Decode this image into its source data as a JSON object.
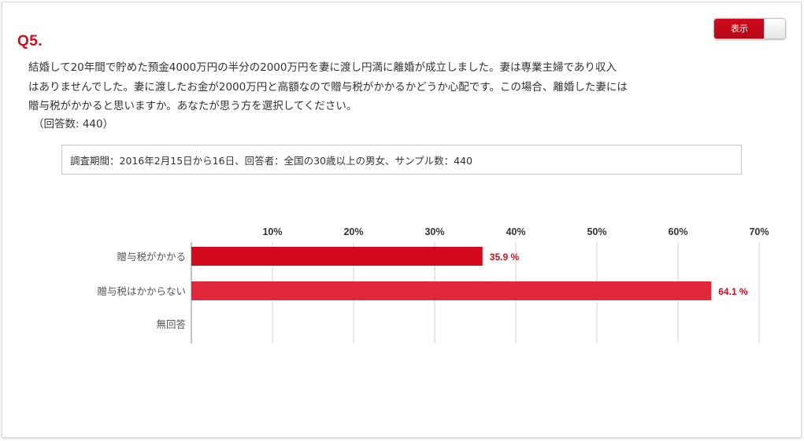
{
  "toggle": {
    "label": "表示"
  },
  "question": {
    "number": "Q5.",
    "text": "結婚して20年間で貯めた預金4000万円の半分の2000万円を妻に渡し円満に離婚が成立しました。妻は専業主婦であり収入\nはありませんでした。妻に渡したお金が2000万円と高額なので贈与税がかかるかどうか心配です。この場合、離婚した妻には\n贈与税がかかると思いますか。あなたが思う方を選択してください。",
    "answers": "（回答数: 440）"
  },
  "survey_info": "調査期間：2016年2月15日から16日、回答者：全国の30歳以上の男女、サンプル数：440",
  "colors": {
    "accent": "#d20a1c",
    "bar_primary": "#d20a1c",
    "bar_secondary": "#e0283a",
    "label": "#d20a1c",
    "grid": "#d0d0d0",
    "axis": "#888888"
  },
  "chart_data": {
    "type": "bar",
    "orientation": "horizontal",
    "categories": [
      "贈与税がかかる",
      "贈与税はかからない",
      "無回答"
    ],
    "values": [
      35.9,
      64.1,
      0
    ],
    "value_labels": [
      "35.9 %",
      "64.1 %",
      ""
    ],
    "xlim": [
      0,
      70
    ],
    "xticks": [
      10,
      20,
      30,
      40,
      50,
      60,
      70
    ],
    "tick_labels": [
      "10%",
      "20%",
      "30%",
      "40%",
      "50%",
      "60%",
      "70%"
    ],
    "tick_position": "top",
    "grid": true,
    "legend": "none"
  }
}
